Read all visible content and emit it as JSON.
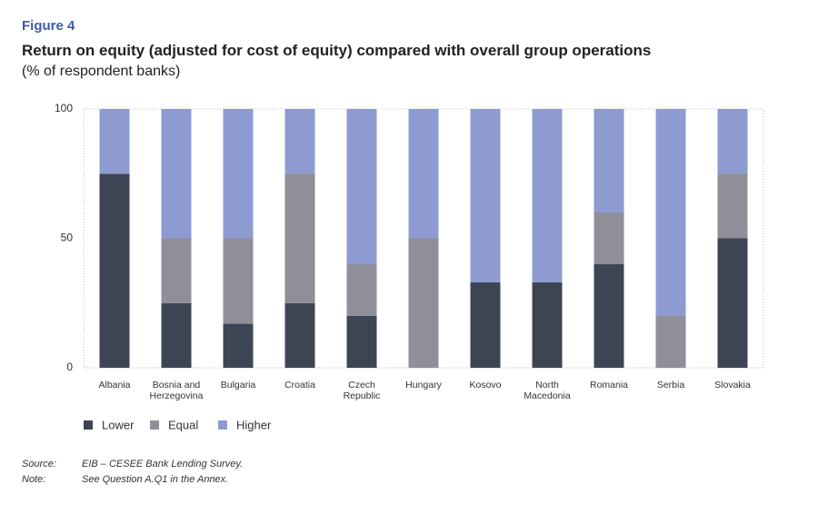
{
  "chart_data": {
    "type": "stacked-bar",
    "figure_label": "Figure 4",
    "title": "Return on equity (adjusted for cost of equity) compared with overall group operations",
    "subtitle": "(% of respondent banks)",
    "categories": [
      "Albania",
      "Bosnia and Herzegovina",
      "Bulgaria",
      "Croatia",
      "Czech Republic",
      "Hungary",
      "Kosovo",
      "North Macedonia",
      "Romania",
      "Serbia",
      "Slovakia"
    ],
    "series": [
      {
        "name": "Lower",
        "color": "#3d4555",
        "values": [
          75,
          25,
          17,
          25,
          20,
          0,
          33,
          33,
          40,
          0,
          50
        ]
      },
      {
        "name": "Equal",
        "color": "#8e8f98",
        "values": [
          0,
          25,
          33,
          50,
          20,
          50,
          0,
          0,
          20,
          20,
          25
        ]
      },
      {
        "name": "Higher",
        "color": "#8e9bd1",
        "values": [
          25,
          50,
          50,
          25,
          60,
          50,
          67,
          67,
          40,
          80,
          25
        ]
      }
    ],
    "ylim": [
      0,
      100
    ],
    "yticks": [
      0,
      50,
      100
    ],
    "grid": false,
    "notes": [
      {
        "label": "Source:",
        "text": "EIB – CESEE Bank Lending Survey."
      },
      {
        "label": "Note:",
        "text": "See Question A.Q1 in the Annex."
      }
    ]
  }
}
